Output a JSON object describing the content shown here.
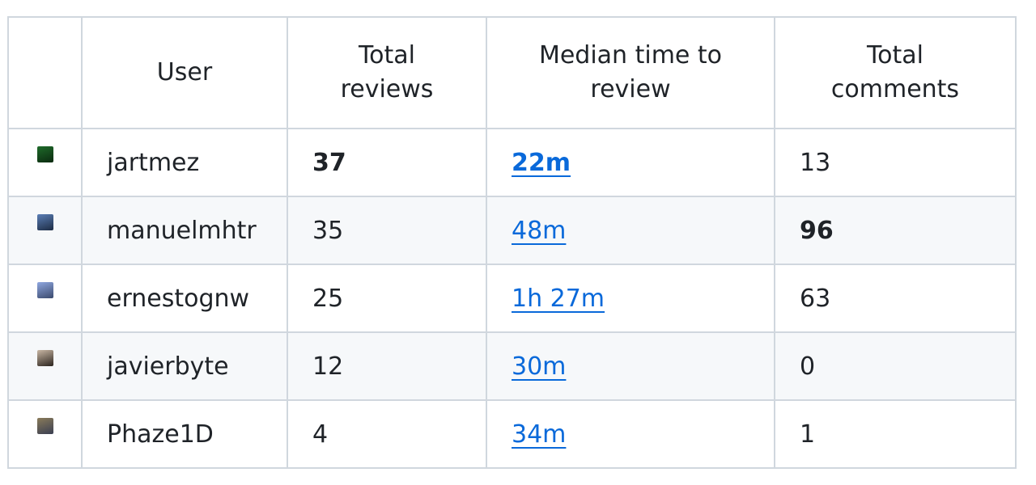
{
  "table": {
    "headers": {
      "avatar": "",
      "user": "User",
      "total_reviews": "Total reviews",
      "median_time": "Median time to review",
      "total_comments": "Total comments"
    },
    "rows": [
      {
        "user": "jartmez",
        "total_reviews": "37",
        "median_time": "22m",
        "total_comments": "13",
        "avatar_color": "#1f6b2a",
        "avatar_accent": "#0b2a10",
        "reviews_bold": true,
        "median_bold": true,
        "comments_bold": false
      },
      {
        "user": "manuelmhtr",
        "total_reviews": "35",
        "median_time": "48m",
        "total_comments": "96",
        "avatar_color": "#5b7fb6",
        "avatar_accent": "#1d2c44",
        "reviews_bold": false,
        "median_bold": false,
        "comments_bold": true
      },
      {
        "user": "ernestognw",
        "total_reviews": "25",
        "median_time": "1h 27m",
        "total_comments": "63",
        "avatar_color": "#8fa7e0",
        "avatar_accent": "#3b4a6d",
        "reviews_bold": false,
        "median_bold": false,
        "comments_bold": false
      },
      {
        "user": "javierbyte",
        "total_reviews": "12",
        "median_time": "30m",
        "total_comments": "0",
        "avatar_color": "#c9b7a4",
        "avatar_accent": "#2a231d",
        "reviews_bold": false,
        "median_bold": false,
        "comments_bold": false
      },
      {
        "user": "Phaze1D",
        "total_reviews": "4",
        "median_time": "34m",
        "total_comments": "1",
        "avatar_color": "#8a7b5a",
        "avatar_accent": "#3a3f52",
        "reviews_bold": false,
        "median_bold": false,
        "comments_bold": false
      }
    ]
  }
}
